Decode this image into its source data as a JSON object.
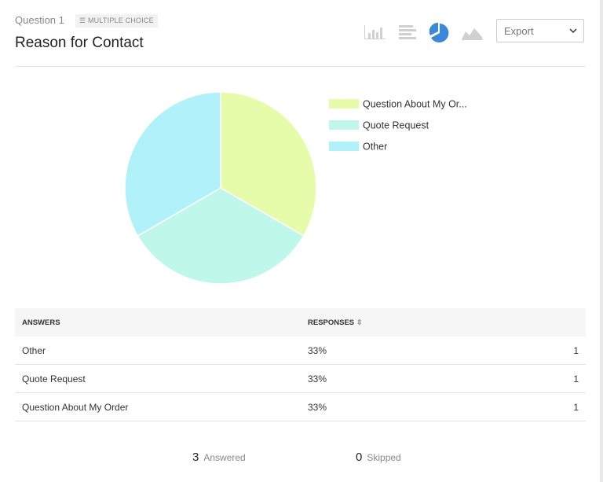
{
  "header": {
    "question": "Question 1",
    "badge": "MULTIPLE CHOICE",
    "title": "Reason for Contact",
    "export": "Export"
  },
  "chart_data": {
    "type": "pie",
    "categories": [
      "Question About My Or...",
      "Quote Request",
      "Other"
    ],
    "values": [
      1,
      1,
      1
    ],
    "colors": [
      "#e7fcaa",
      "#bff8ea",
      "#b1f1f9"
    ]
  },
  "table": {
    "columns": [
      "ANSWERS",
      "RESPONSES"
    ],
    "rows": [
      {
        "answer": "Other",
        "percent": "33%",
        "count": 1
      },
      {
        "answer": "Quote Request",
        "percent": "33%",
        "count": 1
      },
      {
        "answer": "Question About My Order",
        "percent": "33%",
        "count": 1
      }
    ]
  },
  "summary": {
    "answered": 3,
    "answered_label": "Answered",
    "skipped": 0,
    "skipped_label": "Skipped"
  }
}
